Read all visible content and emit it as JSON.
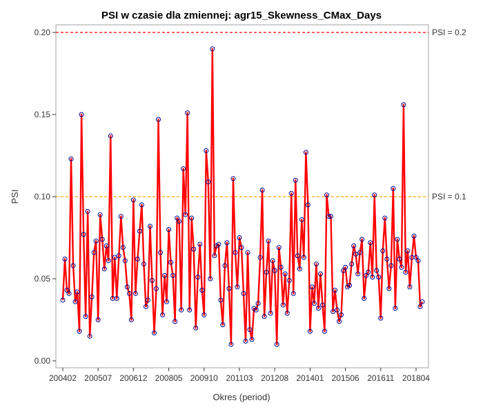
{
  "chart_data": {
    "type": "line",
    "title": "PSI w czasie dla zmiennej: agr15_Skewness_CMax_Days",
    "xlabel": "Okres (period)",
    "ylabel": "PSI",
    "ylim": [
      0,
      0.2
    ],
    "yticks": [
      "0.00",
      "0.05",
      "0.10",
      "0.15",
      "0.20"
    ],
    "xticks": [
      "200402",
      "200507",
      "200612",
      "200805",
      "200910",
      "201103",
      "201208",
      "201401",
      "201506",
      "201611",
      "201804"
    ],
    "first_period": "200402",
    "last_period": "201807",
    "reference_lines": [
      {
        "label": "PSI = 0.2",
        "value": 0.2,
        "color": "#ff0000"
      },
      {
        "label": "PSI = 0.1",
        "value": 0.1,
        "color": "#ffa500"
      }
    ],
    "line_color": "#ff0000",
    "marker_color": "#00008b",
    "grid": false,
    "series": [
      {
        "values": [
          0.037,
          0.062,
          0.043,
          0.041,
          0.123,
          0.058,
          0.036,
          0.042,
          0.018,
          0.15,
          0.077,
          0.027,
          0.091,
          0.015,
          0.039,
          0.066,
          0.073,
          0.025,
          0.089,
          0.074,
          0.056,
          0.07,
          0.061,
          0.137,
          0.038,
          0.063,
          0.038,
          0.064,
          0.088,
          0.069,
          0.061,
          0.045,
          0.041,
          0.025,
          0.098,
          0.041,
          0.062,
          0.079,
          0.095,
          0.059,
          0.033,
          0.037,
          0.082,
          0.049,
          0.017,
          0.044,
          0.147,
          0.066,
          0.028,
          0.052,
          0.036,
          0.08,
          0.06,
          0.052,
          0.024,
          0.087,
          0.085,
          0.031,
          0.117,
          0.089,
          0.151,
          0.031,
          0.087,
          0.068,
          0.02,
          0.051,
          0.071,
          0.043,
          0.028,
          0.128,
          0.109,
          0.05,
          0.19,
          0.064,
          0.07,
          0.071,
          0.037,
          0.022,
          0.058,
          0.072,
          0.044,
          0.01,
          0.111,
          0.066,
          0.045,
          0.075,
          0.069,
          0.041,
          0.012,
          0.066,
          0.019,
          0.013,
          0.032,
          0.031,
          0.035,
          0.063,
          0.104,
          0.027,
          0.054,
          0.073,
          0.029,
          0.061,
          0.055,
          0.01,
          0.069,
          0.057,
          0.034,
          0.053,
          0.029,
          0.049,
          0.102,
          0.041,
          0.11,
          0.064,
          0.056,
          0.086,
          0.063,
          0.127,
          0.095,
          0.018,
          0.045,
          0.035,
          0.059,
          0.032,
          0.053,
          0.034,
          0.018,
          0.101,
          0.088,
          0.088,
          0.03,
          0.043,
          0.031,
          0.024,
          0.028,
          0.055,
          0.057,
          0.045,
          0.046,
          0.059,
          0.07,
          0.065,
          0.053,
          0.066,
          0.074,
          0.038,
          0.052,
          0.054,
          0.072,
          0.051,
          0.101,
          0.055,
          0.051,
          0.026,
          0.067,
          0.087,
          0.062,
          0.044,
          0.058,
          0.105,
          0.032,
          0.074,
          0.062,
          0.057,
          0.156,
          0.054,
          0.067,
          0.045,
          0.063,
          0.076,
          0.063,
          0.061,
          0.033,
          0.036
        ]
      }
    ]
  }
}
